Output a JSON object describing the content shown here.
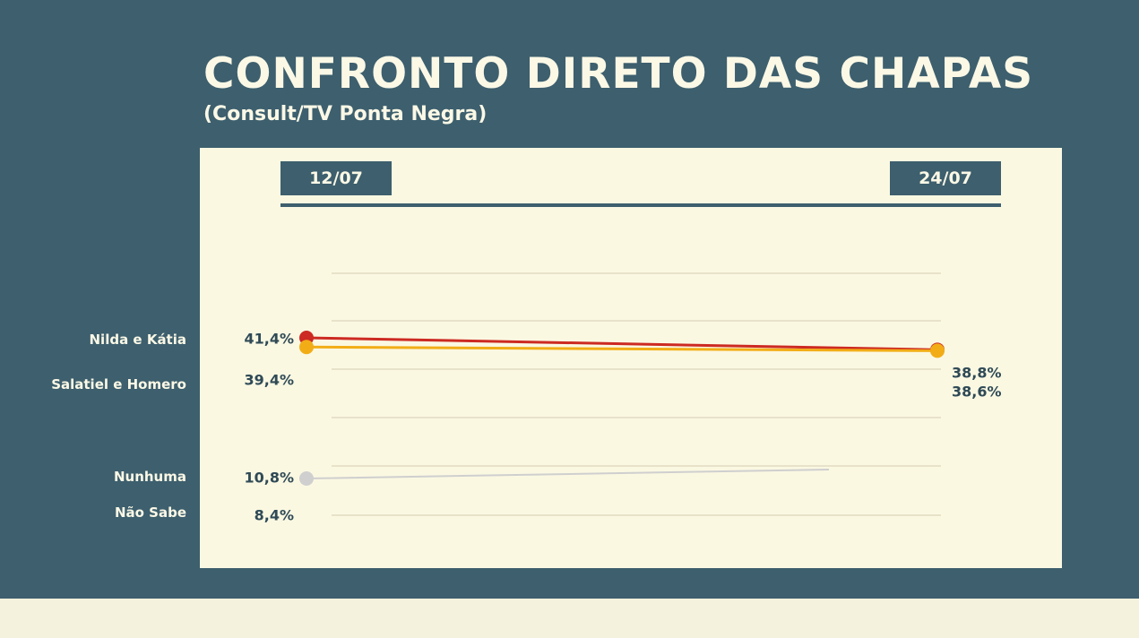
{
  "chart_data": {
    "type": "line",
    "title": "CONFRONTO DIRETO DAS CHAPAS",
    "subtitle": "(Consult/TV Ponta Negra)",
    "x": [
      "12/07",
      "24/07"
    ],
    "ylim": [
      0,
      45
    ],
    "grid": true,
    "series": [
      {
        "name": "Nilda e Kátia",
        "color": "#cc2a22",
        "values": [
          41.4,
          38.8
        ],
        "labels": [
          "41,4%",
          "38,8%"
        ]
      },
      {
        "name": "Salatiel e Homero",
        "color": "#f2ad16",
        "values": [
          39.4,
          38.6
        ],
        "labels": [
          "39,4%",
          "38,6%"
        ]
      },
      {
        "name": "Nunhuma",
        "color": "#cfcfcf",
        "values": [
          10.8,
          null
        ],
        "labels": [
          "10,8%",
          ""
        ]
      },
      {
        "name": "Não Sabe",
        "color": null,
        "values": [
          8.4,
          null
        ],
        "labels": [
          "8,4%",
          ""
        ]
      }
    ]
  }
}
